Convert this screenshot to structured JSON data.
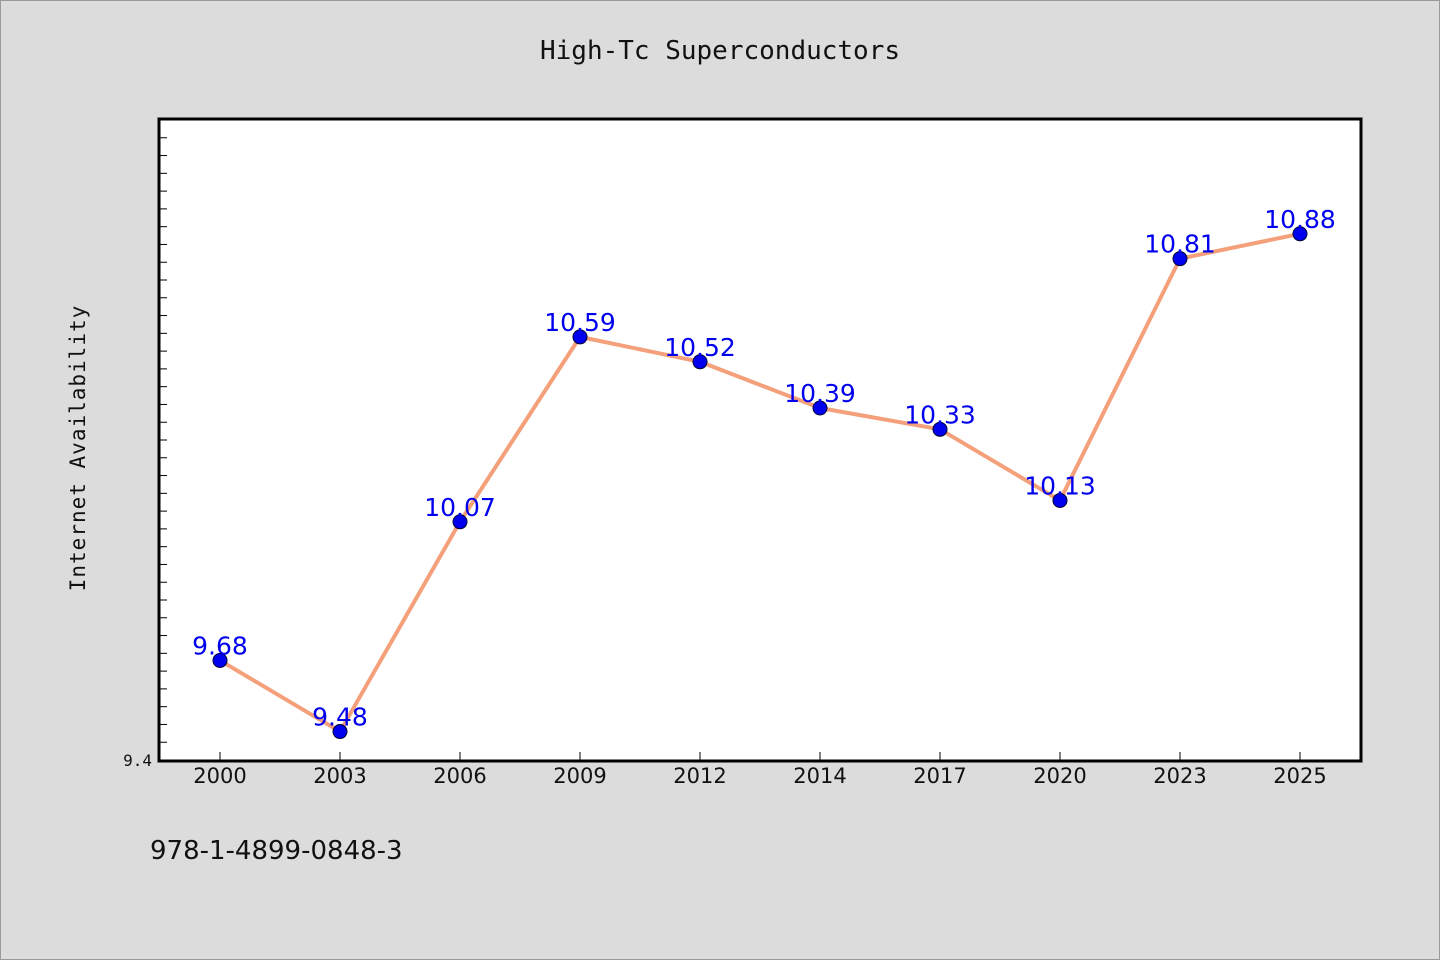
{
  "chart_data": {
    "type": "line",
    "title": "High-Tc Superconductors",
    "xlabel": "",
    "ylabel": "Internet Availability",
    "categories": [
      "2000",
      "2003",
      "2006",
      "2009",
      "2012",
      "2014",
      "2017",
      "2020",
      "2023",
      "2025"
    ],
    "series": [
      {
        "values": [
          9.68,
          9.48,
          10.07,
          10.59,
          10.52,
          10.39,
          10.33,
          10.13,
          10.81,
          10.88
        ],
        "value_labels": [
          "9.68",
          "9.48",
          "10.07",
          "10.59",
          "10.52",
          "10.39",
          "10.33",
          "10.13",
          "10.81",
          "10.88"
        ],
        "line_color": "#f4a07a",
        "marker_color": "#0000ee"
      }
    ],
    "ylim": [
      9.4,
      11.2
    ],
    "y_tick_labels": [
      "9.4"
    ],
    "grid": false,
    "legend": "none",
    "data_label_color": "#0000ee"
  },
  "footer": {
    "code": "978-1-4899-0848-3"
  },
  "colors": {
    "background": "#dcdcdc",
    "plot_background": "#ffffff",
    "axis": "#000000"
  }
}
